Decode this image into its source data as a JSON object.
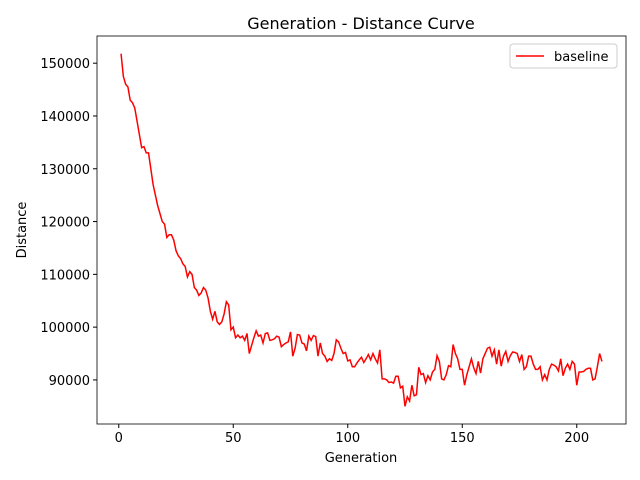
{
  "chart_data": {
    "type": "line",
    "title": "Generation - Distance Curve",
    "xlabel": "Generation",
    "ylabel": "Distance",
    "x": [
      1,
      2,
      3,
      4,
      5,
      6,
      7,
      8,
      9,
      10,
      11,
      12,
      13,
      14,
      15,
      16,
      17,
      18,
      19,
      20,
      21,
      22,
      23,
      24,
      25,
      26,
      27,
      28,
      29,
      30,
      31,
      32,
      33,
      34,
      35,
      36,
      37,
      38,
      39,
      40,
      41,
      42,
      43,
      44,
      45,
      46,
      47,
      48,
      49,
      50,
      51,
      52,
      53,
      54,
      55,
      56,
      57,
      58,
      59,
      60,
      61,
      62,
      63,
      64,
      65,
      66,
      67,
      68,
      69,
      70,
      71,
      72,
      73,
      74,
      75,
      76,
      77,
      78,
      79,
      80,
      81,
      82,
      83,
      84,
      85,
      86,
      87,
      88,
      89,
      90,
      91,
      92,
      93,
      94,
      95,
      96,
      97,
      98,
      99,
      100,
      101,
      102,
      103,
      104,
      105,
      106,
      107,
      108,
      109,
      110,
      111,
      112,
      113,
      114,
      115,
      116,
      117,
      118,
      119,
      120,
      121,
      122,
      123,
      124,
      125,
      126,
      127,
      128,
      129,
      130,
      131,
      132,
      133,
      134,
      135,
      136,
      137,
      138,
      139,
      140,
      141,
      142,
      143,
      144,
      145,
      146,
      147,
      148,
      149,
      150,
      151,
      152,
      153,
      154,
      155,
      156,
      157,
      158,
      159,
      160,
      161,
      162,
      163,
      164,
      165,
      166,
      167,
      168,
      169,
      170,
      171,
      172,
      173,
      174,
      175,
      176,
      177,
      178,
      179,
      180,
      181,
      182,
      183,
      184,
      185,
      186,
      187,
      188,
      189,
      190,
      191,
      192,
      193,
      194,
      195,
      196,
      197,
      198,
      199,
      200,
      201,
      202,
      203,
      204,
      205,
      206,
      207,
      208,
      209,
      210,
      211
    ],
    "series": [
      {
        "name": "baseline",
        "color": "#ff0000",
        "values": [
          151800,
          147500,
          146000,
          145500,
          143000,
          142500,
          141500,
          139000,
          136500,
          134000,
          134200,
          133000,
          133000,
          130000,
          127000,
          125000,
          123000,
          121500,
          120000,
          119500,
          117000,
          117500,
          117500,
          116500,
          114500,
          113500,
          113000,
          112000,
          111500,
          109500,
          110500,
          110000,
          107500,
          107000,
          106000,
          106500,
          107500,
          107000,
          105500,
          103000,
          101500,
          103000,
          101000,
          100500,
          101000,
          102500,
          104800,
          104200,
          99500,
          100000,
          98000,
          98500,
          98000,
          98300,
          97500,
          98800,
          95000,
          96500,
          98000,
          99300,
          98300,
          98500,
          97000,
          98800,
          98900,
          97500,
          97600,
          97800,
          98300,
          98100,
          96300,
          96700,
          97000,
          97200,
          99100,
          94500,
          96000,
          98600,
          98500,
          97000,
          96800,
          95500,
          98300,
          97500,
          98400,
          98200,
          94500,
          97000,
          95000,
          94500,
          93500,
          94000,
          93700,
          95000,
          97600,
          97200,
          96000,
          95000,
          95200,
          93600,
          93800,
          92500,
          92500,
          93200,
          93800,
          94300,
          93300,
          94000,
          94800,
          93800,
          95000,
          94000,
          93200,
          95700,
          90200,
          90200,
          90000,
          89500,
          89600,
          89400,
          90700,
          90700,
          88500,
          88800,
          85000,
          86800,
          86000,
          89000,
          87000,
          87200,
          92400,
          91000,
          91200,
          89500,
          90800,
          90000,
          91500,
          92000,
          94600,
          93500,
          90200,
          90000,
          91000,
          92700,
          92500,
          96700,
          95000,
          94000,
          92000,
          92000,
          89000,
          91000,
          92500,
          94000,
          92300,
          91200,
          93500,
          91300,
          94000,
          95000,
          96000,
          96200,
          94500,
          95700,
          93000,
          95700,
          92600,
          94500,
          95400,
          93500,
          94600,
          95300,
          95200,
          95000,
          93500,
          94800,
          92000,
          92500,
          94500,
          94500,
          93000,
          92000,
          92000,
          92500,
          90000,
          91000,
          90000,
          92000,
          93000,
          92800,
          92500,
          91700,
          94000,
          90800,
          92200,
          93000,
          92000,
          93500,
          93000,
          89000,
          91500,
          91500,
          91600,
          92000,
          92200,
          92200,
          90000,
          90200,
          92500,
          95000,
          93500
        ]
      }
    ],
    "xlim": [
      -9.5,
      221.5
    ],
    "xticks": [
      0,
      50,
      100,
      150,
      200
    ],
    "ylim": [
      81650,
      155150
    ],
    "yticks": [
      90000,
      100000,
      110000,
      120000,
      130000,
      140000,
      150000
    ],
    "legend": "upper right",
    "grid": false
  }
}
